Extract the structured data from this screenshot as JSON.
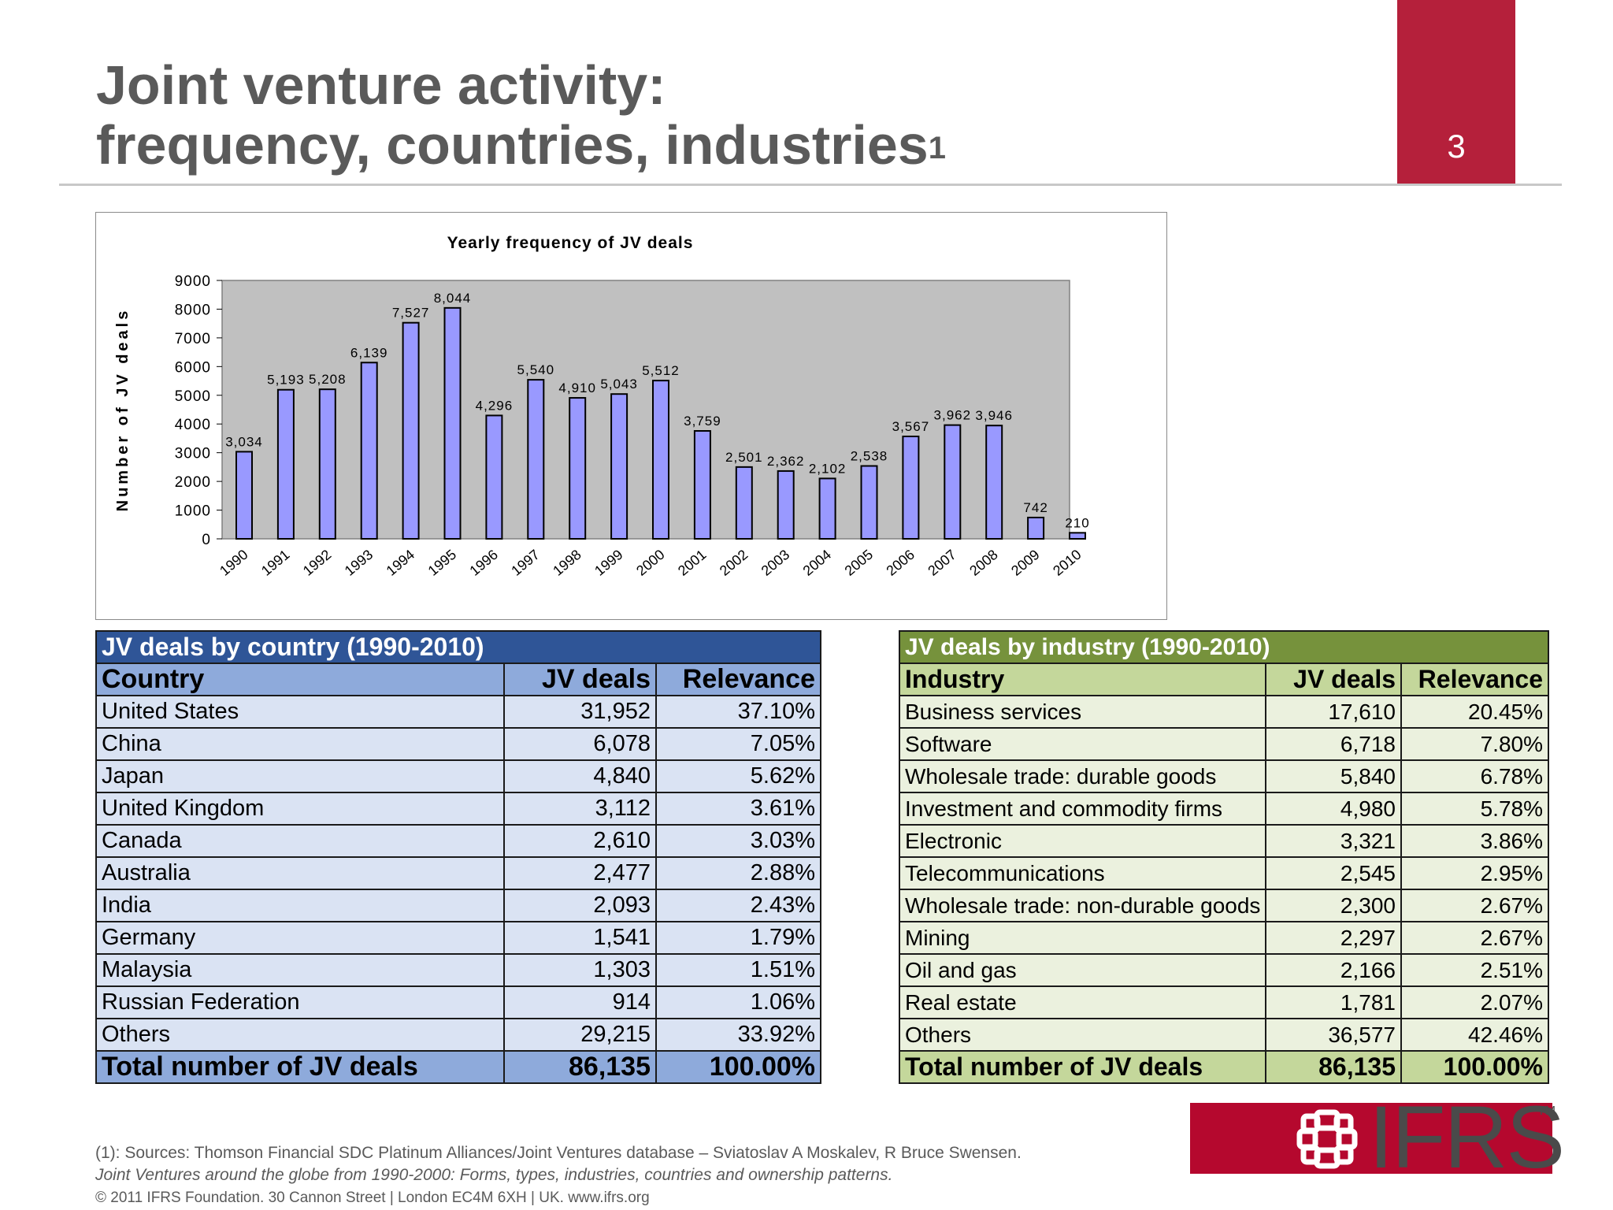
{
  "slide": {
    "title_line1": "Joint venture activity:",
    "title_line2": "frequency, countries, industries",
    "title_sup": "1",
    "page_number": "3",
    "accent_color": "#b5203b"
  },
  "chart_data": {
    "type": "bar",
    "title": "Yearly frequency of JV deals",
    "xlabel": "",
    "ylabel": "Number of JV deals",
    "ylim": [
      0,
      9000
    ],
    "yticks": [
      0,
      1000,
      2000,
      3000,
      4000,
      5000,
      6000,
      7000,
      8000,
      9000
    ],
    "grid": false,
    "bar_color": "#9999ff",
    "plot_background": "#c0c0c0",
    "categories": [
      "1990",
      "1991",
      "1992",
      "1993",
      "1994",
      "1995",
      "1996",
      "1997",
      "1998",
      "1999",
      "2000",
      "2001",
      "2002",
      "2003",
      "2004",
      "2005",
      "2006",
      "2007",
      "2008",
      "2009",
      "2010"
    ],
    "values": [
      3034,
      5193,
      5208,
      6139,
      7527,
      8044,
      4296,
      5540,
      4910,
      5043,
      5512,
      3759,
      2501,
      2362,
      2102,
      2538,
      3567,
      3962,
      3946,
      742,
      210
    ],
    "value_labels": [
      "3,034",
      "5,193",
      "5,208",
      "6,139",
      "7,527",
      "8,044",
      "4,296",
      "5,540",
      "4,910",
      "5,043",
      "5,512",
      "3,759",
      "2,501",
      "2,362",
      "2,102",
      "2,538",
      "3,567",
      "3,962",
      "3,946",
      "742",
      "210"
    ]
  },
  "country_table": {
    "caption": "JV deals by country (1990-2010)",
    "headers": [
      "Country",
      "JV deals",
      "Relevance"
    ],
    "rows": [
      [
        "United States",
        "31,952",
        "37.10%"
      ],
      [
        "China",
        "6,078",
        "7.05%"
      ],
      [
        "Japan",
        "4,840",
        "5.62%"
      ],
      [
        "United Kingdom",
        "3,112",
        "3.61%"
      ],
      [
        "Canada",
        "2,610",
        "3.03%"
      ],
      [
        "Australia",
        "2,477",
        "2.88%"
      ],
      [
        "India",
        "2,093",
        "2.43%"
      ],
      [
        "Germany",
        "1,541",
        "1.79%"
      ],
      [
        "Malaysia",
        "1,303",
        "1.51%"
      ],
      [
        "Russian Federation",
        "914",
        "1.06%"
      ],
      [
        "Others",
        "29,215",
        "33.92%"
      ]
    ],
    "total": [
      "Total number of JV deals",
      "86,135",
      "100.00%"
    ]
  },
  "industry_table": {
    "caption": "JV deals by industry (1990-2010)",
    "headers": [
      "Industry",
      "JV deals",
      "Relevance"
    ],
    "rows": [
      [
        "Business services",
        "17,610",
        "20.45%"
      ],
      [
        "Software",
        "6,718",
        "7.80%"
      ],
      [
        "Wholesale trade: durable goods",
        "5,840",
        "6.78%"
      ],
      [
        "Investment and commodity firms",
        "4,980",
        "5.78%"
      ],
      [
        "Electronic",
        "3,321",
        "3.86%"
      ],
      [
        "Telecommunications",
        "2,545",
        "2.95%"
      ],
      [
        "Wholesale trade: non-durable goods",
        "2,300",
        "2.67%"
      ],
      [
        "Mining",
        "2,297",
        "2.67%"
      ],
      [
        "Oil and gas",
        "2,166",
        "2.51%"
      ],
      [
        "Real estate",
        "1,781",
        "2.07%"
      ],
      [
        "Others",
        "36,577",
        "42.46%"
      ]
    ],
    "total": [
      "Total number of JV deals",
      "86,135",
      "100.00%"
    ]
  },
  "footnote": {
    "line1": "(1): Sources:  Thomson Financial SDC Platinum Alliances/Joint Ventures database – Sviatoslav A Moskalev, R Bruce Swensen.",
    "line2": "Joint Ventures around the globe from 1990-2000: Forms, types, industries, countries and ownership patterns."
  },
  "copyright": "© 2011 IFRS Foundation.  30 Cannon Street  |  London EC4M 6XH  |  UK.  www.ifrs.org",
  "logo": {
    "text": "IFRS",
    "tm": "TM",
    "icon": "ifrs-flower-icon",
    "color": "#b5082e"
  }
}
